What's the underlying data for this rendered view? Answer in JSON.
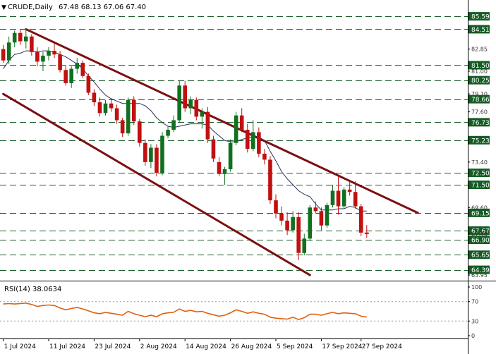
{
  "chart_data": [
    {
      "type": "candlestick",
      "header": {
        "symbol": "CRUDE,Daily",
        "ohlc": "67.48 68.13 67.06 67.40"
      },
      "y_axis_ticks": [
        {
          "label": "85.59",
          "value": 85.59,
          "boxed": true
        },
        {
          "label": "84.51",
          "value": 84.51,
          "boxed": true
        },
        {
          "label": "82.85",
          "value": 82.85,
          "boxed": false
        },
        {
          "label": "81.50",
          "value": 81.5,
          "boxed": true
        },
        {
          "label": "81.00",
          "value": 81.0,
          "boxed": false
        },
        {
          "label": "80.25",
          "value": 80.25,
          "boxed": true
        },
        {
          "label": "79.10",
          "value": 79.1,
          "boxed": false
        },
        {
          "label": "78.66",
          "value": 78.66,
          "boxed": true
        },
        {
          "label": "77.60",
          "value": 77.6,
          "boxed": false
        },
        {
          "label": "76.73",
          "value": 76.73,
          "boxed": true
        },
        {
          "label": "75.23",
          "value": 75.23,
          "boxed": true
        },
        {
          "label": "73.40",
          "value": 73.4,
          "boxed": false
        },
        {
          "label": "72.50",
          "value": 72.5,
          "boxed": true
        },
        {
          "label": "71.50",
          "value": 71.5,
          "boxed": true
        },
        {
          "label": "69.60",
          "value": 69.6,
          "boxed": false
        },
        {
          "label": "69.15",
          "value": 69.15,
          "boxed": true
        },
        {
          "label": "67.67",
          "value": 67.67,
          "boxed": true
        },
        {
          "label": "67.40",
          "value": 67.4,
          "boxed": false
        },
        {
          "label": "66.90",
          "value": 66.9,
          "boxed": true
        },
        {
          "label": "65.65",
          "value": 65.65,
          "boxed": true
        },
        {
          "label": "64.39",
          "value": 64.39,
          "boxed": true
        },
        {
          "label": "63.95",
          "value": 63.95,
          "boxed": false
        }
      ],
      "support_resistance": [
        85.59,
        84.51,
        81.5,
        80.25,
        78.66,
        76.73,
        75.23,
        72.5,
        71.5,
        69.15,
        67.67,
        66.9,
        65.65,
        64.39
      ],
      "x_labels": [
        "1 Jul 2024",
        "11 Jul 2024",
        "23 Jul 2024",
        "2 Aug 2024",
        "14 Aug 2024",
        "26 Aug 2024",
        "5 Sep 2024",
        "17 Sep 2024",
        "27 Sep 2024"
      ],
      "x_label_index": [
        0,
        8,
        16,
        24,
        32,
        40,
        48,
        56,
        63
      ],
      "ylim": [
        63.6,
        86.6
      ],
      "candles": [
        [
          82.85,
          83.2,
          81.7,
          81.9
        ],
        [
          81.9,
          83.9,
          81.6,
          83.4
        ],
        [
          83.4,
          84.4,
          83.0,
          84.2
        ],
        [
          84.2,
          84.5,
          83.2,
          83.5
        ],
        [
          83.5,
          84.6,
          82.9,
          83.9
        ],
        [
          83.9,
          84.1,
          82.3,
          82.6
        ],
        [
          82.6,
          83.0,
          81.4,
          81.8
        ],
        [
          81.8,
          82.6,
          81.0,
          82.3
        ],
        [
          82.3,
          83.0,
          81.9,
          82.7
        ],
        [
          82.7,
          83.3,
          82.1,
          82.4
        ],
        [
          82.4,
          82.7,
          80.9,
          81.1
        ],
        [
          81.1,
          81.5,
          79.8,
          80.0
        ],
        [
          80.0,
          81.4,
          79.6,
          81.2
        ],
        [
          81.2,
          82.1,
          80.8,
          81.7
        ],
        [
          81.7,
          81.9,
          80.4,
          80.6
        ],
        [
          80.6,
          80.8,
          79.0,
          79.2
        ],
        [
          79.2,
          79.5,
          78.1,
          78.4
        ],
        [
          78.4,
          78.8,
          77.2,
          77.5
        ],
        [
          77.5,
          78.6,
          77.3,
          78.3
        ],
        [
          78.3,
          78.7,
          77.6,
          77.9
        ],
        [
          77.9,
          78.2,
          76.6,
          76.9
        ],
        [
          76.9,
          77.1,
          75.5,
          75.8
        ],
        [
          75.8,
          78.8,
          75.6,
          78.6
        ],
        [
          78.6,
          78.9,
          76.5,
          76.8
        ],
        [
          76.8,
          77.0,
          74.7,
          75.0
        ],
        [
          75.0,
          75.3,
          73.1,
          73.4
        ],
        [
          73.4,
          74.9,
          72.9,
          74.6
        ],
        [
          74.6,
          74.9,
          72.2,
          72.5
        ],
        [
          72.5,
          75.9,
          72.3,
          75.6
        ],
        [
          75.6,
          76.4,
          75.4,
          76.1
        ],
        [
          76.1,
          77.3,
          75.9,
          76.9
        ],
        [
          76.9,
          80.2,
          76.7,
          79.8
        ],
        [
          79.8,
          80.2,
          77.6,
          77.9
        ],
        [
          77.9,
          78.9,
          77.4,
          78.6
        ],
        [
          78.6,
          78.8,
          76.9,
          77.2
        ],
        [
          77.2,
          77.9,
          76.2,
          77.6
        ],
        [
          77.6,
          78.0,
          75.0,
          75.3
        ],
        [
          75.3,
          75.6,
          73.4,
          73.7
        ],
        [
          73.4,
          73.8,
          72.2,
          72.4
        ],
        [
          72.4,
          73.0,
          71.5,
          72.8
        ],
        [
          72.8,
          75.3,
          72.6,
          75.0
        ],
        [
          75.0,
          77.6,
          74.8,
          77.3
        ],
        [
          77.3,
          77.9,
          75.9,
          76.1
        ],
        [
          76.1,
          76.6,
          74.2,
          74.5
        ],
        [
          74.5,
          76.9,
          74.3,
          75.9
        ],
        [
          75.9,
          76.3,
          73.8,
          74.1
        ],
        [
          74.1,
          74.5,
          73.2,
          73.6
        ],
        [
          73.6,
          73.9,
          69.9,
          70.2
        ],
        [
          70.2,
          70.7,
          68.7,
          69.1
        ],
        [
          69.1,
          69.7,
          68.1,
          68.5
        ],
        [
          68.5,
          69.2,
          67.3,
          67.7
        ],
        [
          67.7,
          69.3,
          67.5,
          68.8
        ],
        [
          68.8,
          69.2,
          65.2,
          65.8
        ],
        [
          65.8,
          67.4,
          65.6,
          67.0
        ],
        [
          67.0,
          69.8,
          66.8,
          69.6
        ],
        [
          69.6,
          70.1,
          69.1,
          69.3
        ],
        [
          69.3,
          69.6,
          67.7,
          68.1
        ],
        [
          68.1,
          70.0,
          67.9,
          69.8
        ],
        [
          69.8,
          71.5,
          69.6,
          71.0
        ],
        [
          71.0,
          72.2,
          69.0,
          69.7
        ],
        [
          69.7,
          71.3,
          69.5,
          71.1
        ],
        [
          71.1,
          71.8,
          70.6,
          70.9
        ],
        [
          70.9,
          71.8,
          69.5,
          69.7
        ],
        [
          69.7,
          69.9,
          67.2,
          67.5
        ],
        [
          67.48,
          68.13,
          67.06,
          67.4
        ]
      ],
      "moving_average": [
        81.2,
        81.9,
        82.4,
        82.5,
        82.7,
        82.7,
        82.6,
        82.7,
        82.7,
        82.6,
        82.4,
        82.2,
        81.9,
        81.6,
        81.2,
        80.6,
        80.1,
        79.5,
        79.0,
        78.7,
        78.5,
        78.3,
        78.3,
        78.3,
        78.3,
        78.1,
        77.7,
        77.1,
        76.7,
        76.4,
        76.3,
        76.4,
        76.5,
        76.6,
        76.6,
        76.6,
        76.5,
        76.0,
        75.6,
        75.2,
        75.1,
        75.1,
        75.3,
        75.4,
        75.5,
        75.5,
        75.2,
        74.3,
        73.5,
        72.6,
        72.0,
        71.5,
        71.0,
        70.7,
        70.5,
        69.9,
        69.4,
        69.4,
        69.4,
        69.5,
        69.5,
        69.7,
        69.6,
        69.3,
        69.3
      ],
      "channel_lines": [
        {
          "from": {
            "i": 4,
            "v": 84.51
          },
          "to": {
            "i": 73,
            "v": 69.15
          }
        },
        {
          "from": {
            "i": 0,
            "v": 79.1
          },
          "to": {
            "i": 54,
            "v": 63.95
          }
        }
      ]
    },
    {
      "type": "line",
      "title": "RSI(14) 38.0634",
      "ylim": [
        0,
        100
      ],
      "y_ticks": [
        100,
        70,
        30,
        0
      ],
      "values": [
        65,
        66,
        65,
        66,
        67,
        64,
        60,
        62,
        63,
        62,
        57,
        53,
        56,
        58,
        55,
        51,
        47,
        45,
        48,
        46,
        44,
        42,
        50,
        45,
        42,
        39,
        42,
        39,
        45,
        47,
        48,
        55,
        50,
        52,
        49,
        50,
        46,
        43,
        40,
        42,
        47,
        53,
        50,
        46,
        49,
        46,
        44,
        38,
        36,
        35,
        34,
        38,
        33,
        37,
        44,
        44,
        42,
        45,
        48,
        45,
        47,
        46,
        45,
        40,
        38.06
      ]
    }
  ],
  "colors": {
    "bull": "#107020",
    "bear": "#c01010",
    "channel": "#7a1010",
    "ma": "#2a2f5a",
    "rsi": "#e06010",
    "support": "#1a5d2a",
    "label_box": "#155c24"
  }
}
